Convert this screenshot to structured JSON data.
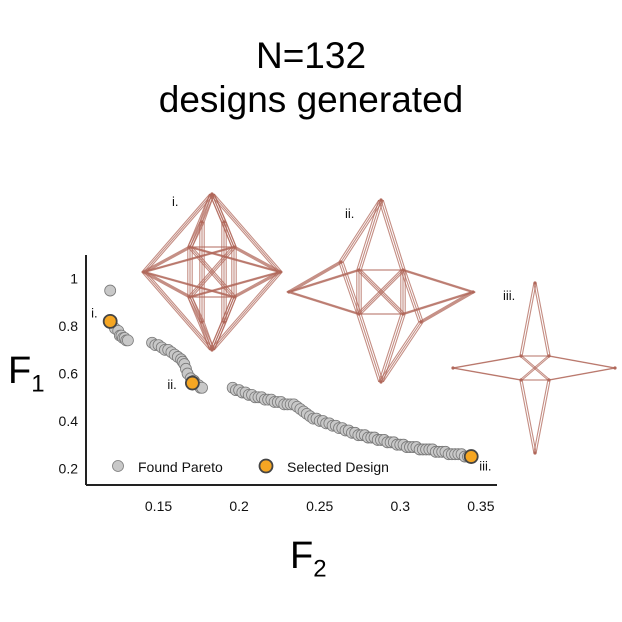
{
  "title": {
    "line1": "N=132",
    "line2": "designs generated"
  },
  "axis": {
    "y_main": "F",
    "y_sub": "1",
    "x_main": "F",
    "x_sub": "2"
  },
  "design_labels": [
    "i.",
    "ii.",
    "iii."
  ],
  "colors": {
    "found": "#c8c8c8",
    "selected": "#f5a623",
    "outline": "#444444",
    "lattice": "#b0675a"
  },
  "chart_data": {
    "type": "scatter",
    "xlim": [
      0.105,
      0.36
    ],
    "ylim": [
      0.13,
      1.1
    ],
    "xticks": [
      0.15,
      0.2,
      0.25,
      0.3,
      0.35
    ],
    "xtick_labels": [
      "0.15",
      "0.2",
      "0.25",
      "0.3",
      "0.35"
    ],
    "yticks": [
      0.2,
      0.4,
      0.6,
      0.8,
      1.0
    ],
    "ytick_labels": [
      "0.2",
      "0.4",
      "0.6",
      "0.8",
      "1"
    ],
    "grid": false,
    "legend": {
      "position": "bottom",
      "entries": [
        "Found Pareto",
        "Selected Design"
      ]
    },
    "series": [
      {
        "name": "Found Pareto",
        "points": [
          [
            0.12,
            0.95
          ],
          [
            0.121,
            0.81
          ],
          [
            0.123,
            0.79
          ],
          [
            0.125,
            0.78
          ],
          [
            0.126,
            0.76
          ],
          [
            0.127,
            0.76
          ],
          [
            0.128,
            0.75
          ],
          [
            0.129,
            0.75
          ],
          [
            0.13,
            0.74
          ],
          [
            0.131,
            0.74
          ],
          [
            0.146,
            0.73
          ],
          [
            0.148,
            0.72
          ],
          [
            0.15,
            0.72
          ],
          [
            0.152,
            0.71
          ],
          [
            0.154,
            0.7
          ],
          [
            0.156,
            0.7
          ],
          [
            0.158,
            0.69
          ],
          [
            0.16,
            0.68
          ],
          [
            0.162,
            0.67
          ],
          [
            0.164,
            0.66
          ],
          [
            0.165,
            0.65
          ],
          [
            0.166,
            0.64
          ],
          [
            0.167,
            0.62
          ],
          [
            0.168,
            0.6
          ],
          [
            0.17,
            0.58
          ],
          [
            0.172,
            0.57
          ],
          [
            0.173,
            0.56
          ],
          [
            0.175,
            0.55
          ],
          [
            0.176,
            0.54
          ],
          [
            0.177,
            0.54
          ],
          [
            0.196,
            0.54
          ],
          [
            0.198,
            0.53
          ],
          [
            0.2,
            0.53
          ],
          [
            0.202,
            0.52
          ],
          [
            0.204,
            0.52
          ],
          [
            0.206,
            0.51
          ],
          [
            0.208,
            0.51
          ],
          [
            0.21,
            0.5
          ],
          [
            0.212,
            0.5
          ],
          [
            0.214,
            0.5
          ],
          [
            0.216,
            0.49
          ],
          [
            0.218,
            0.49
          ],
          [
            0.22,
            0.49
          ],
          [
            0.222,
            0.48
          ],
          [
            0.224,
            0.48
          ],
          [
            0.226,
            0.48
          ],
          [
            0.228,
            0.47
          ],
          [
            0.23,
            0.47
          ],
          [
            0.232,
            0.47
          ],
          [
            0.234,
            0.47
          ],
          [
            0.236,
            0.46
          ],
          [
            0.238,
            0.45
          ],
          [
            0.24,
            0.44
          ],
          [
            0.242,
            0.43
          ],
          [
            0.244,
            0.42
          ],
          [
            0.246,
            0.41
          ],
          [
            0.248,
            0.41
          ],
          [
            0.25,
            0.4
          ],
          [
            0.252,
            0.4
          ],
          [
            0.254,
            0.39
          ],
          [
            0.256,
            0.39
          ],
          [
            0.258,
            0.38
          ],
          [
            0.26,
            0.38
          ],
          [
            0.262,
            0.37
          ],
          [
            0.264,
            0.37
          ],
          [
            0.266,
            0.36
          ],
          [
            0.268,
            0.36
          ],
          [
            0.27,
            0.35
          ],
          [
            0.272,
            0.35
          ],
          [
            0.274,
            0.34
          ],
          [
            0.276,
            0.34
          ],
          [
            0.278,
            0.34
          ],
          [
            0.28,
            0.33
          ],
          [
            0.282,
            0.33
          ],
          [
            0.284,
            0.33
          ],
          [
            0.286,
            0.32
          ],
          [
            0.288,
            0.32
          ],
          [
            0.29,
            0.32
          ],
          [
            0.292,
            0.31
          ],
          [
            0.294,
            0.31
          ],
          [
            0.296,
            0.31
          ],
          [
            0.298,
            0.3
          ],
          [
            0.3,
            0.3
          ],
          [
            0.302,
            0.3
          ],
          [
            0.304,
            0.29
          ],
          [
            0.306,
            0.29
          ],
          [
            0.308,
            0.29
          ],
          [
            0.31,
            0.29
          ],
          [
            0.312,
            0.28
          ],
          [
            0.314,
            0.28
          ],
          [
            0.316,
            0.28
          ],
          [
            0.318,
            0.28
          ],
          [
            0.32,
            0.28
          ],
          [
            0.322,
            0.27
          ],
          [
            0.324,
            0.27
          ],
          [
            0.326,
            0.27
          ],
          [
            0.328,
            0.27
          ],
          [
            0.33,
            0.26
          ],
          [
            0.332,
            0.26
          ],
          [
            0.334,
            0.26
          ],
          [
            0.336,
            0.26
          ],
          [
            0.338,
            0.26
          ],
          [
            0.34,
            0.25
          ],
          [
            0.342,
            0.25
          ]
        ]
      },
      {
        "name": "Selected Design",
        "points": [
          [
            0.12,
            0.82
          ],
          [
            0.171,
            0.56
          ],
          [
            0.344,
            0.25
          ]
        ],
        "labels": [
          "i.",
          "ii.",
          "iii."
        ]
      }
    ]
  }
}
